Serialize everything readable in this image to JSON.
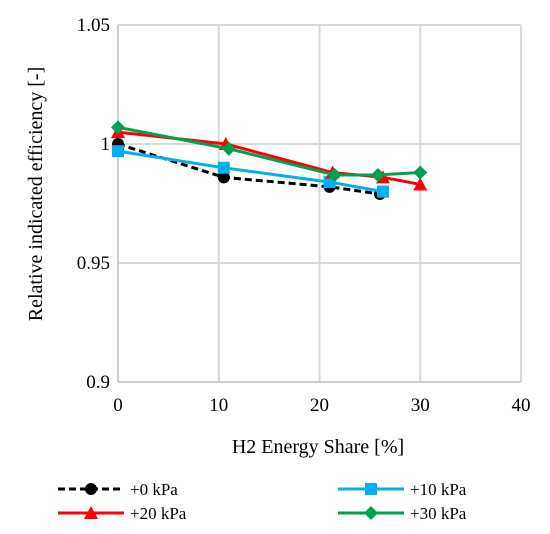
{
  "chart_data": {
    "type": "line",
    "title": "",
    "xlabel": "H2 Energy Share [%]",
    "ylabel": "Relative indicated efficiency [-]",
    "xlim": [
      0,
      40
    ],
    "ylim": [
      0.9,
      1.05
    ],
    "x_ticks": [
      "0",
      "10",
      "20",
      "30",
      "40"
    ],
    "y_ticks": [
      "0.9",
      "0.95",
      "1",
      "1.05"
    ],
    "grid": true,
    "legend_position": "bottom",
    "series": [
      {
        "name": "+0 kPa",
        "color": "#000000",
        "marker": "circle",
        "line": "dashed",
        "x": [
          0,
          10.5,
          21,
          26
        ],
        "y": [
          1.0,
          0.986,
          0.982,
          0.979
        ]
      },
      {
        "name": "+10 kPa",
        "color": "#00b0f0",
        "marker": "square",
        "line": "solid",
        "x": [
          0,
          10.5,
          21,
          26.3
        ],
        "y": [
          0.997,
          0.99,
          0.984,
          0.98
        ]
      },
      {
        "name": "+20 kPa",
        "color": "#ff0000",
        "marker": "triangle",
        "line": "solid",
        "x": [
          0,
          10.7,
          21.3,
          26.3,
          30
        ],
        "y": [
          1.005,
          1.0,
          0.988,
          0.986,
          0.983
        ]
      },
      {
        "name": "+30 kPa",
        "color": "#00a050",
        "marker": "diamond",
        "line": "solid",
        "x": [
          0,
          11,
          21.5,
          25.8,
          30
        ],
        "y": [
          1.007,
          0.998,
          0.987,
          0.987,
          0.988
        ]
      }
    ]
  }
}
